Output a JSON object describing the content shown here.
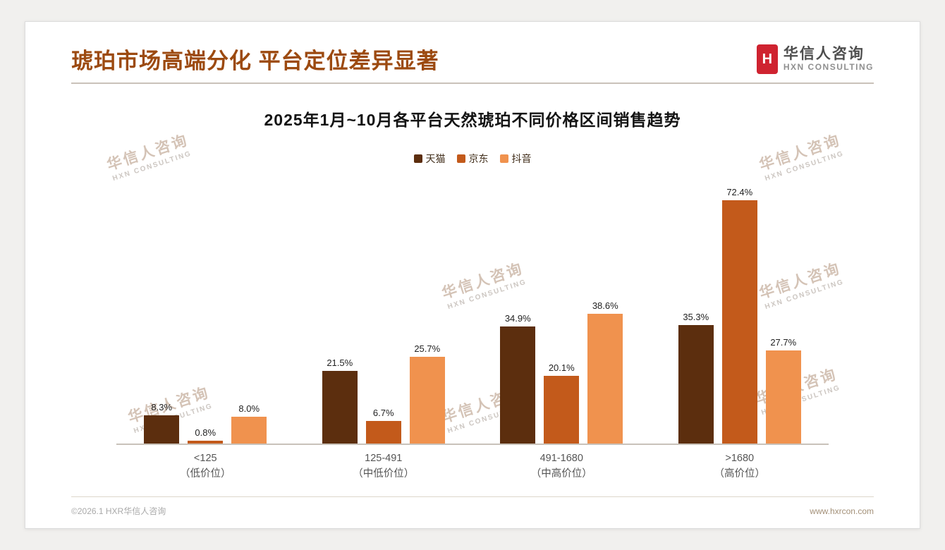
{
  "page": {
    "title": "琥珀市场高端分化 平台定位差异显著",
    "footer_left": "©2026.1 HXR华信人咨询",
    "footer_right": "www.hxrcon.com"
  },
  "logo": {
    "mark_letter": "H",
    "name_cn": "华信人咨询",
    "name_en": "HXN CONSULTING",
    "mark_color": "#cf2330"
  },
  "watermark": {
    "line1": "华信人咨询",
    "line2": "HXN CONSULTING"
  },
  "chart_data": {
    "type": "bar",
    "title": "2025年1月~10月各平台天然琥珀不同价格区间销售趋势",
    "categories": [
      "<125",
      "125-491",
      "491-1680",
      ">1680"
    ],
    "category_sublabels": [
      "（低价位）",
      "（中低价位）",
      "（中高价位）",
      "（高价位）"
    ],
    "series": [
      {
        "key": "tmall",
        "name": "天猫",
        "color": "#5c2e0e",
        "values": [
          8.3,
          21.5,
          34.9,
          35.3
        ]
      },
      {
        "key": "jd",
        "name": "京东",
        "color": "#c35a1b",
        "values": [
          0.8,
          6.7,
          20.1,
          72.4
        ]
      },
      {
        "key": "douyin",
        "name": "抖音",
        "color": "#f0924e",
        "values": [
          8.0,
          25.7,
          38.6,
          27.7
        ]
      }
    ],
    "value_suffix": "%",
    "ylim": [
      0,
      80
    ],
    "legend_position": "top",
    "grid": false,
    "data_labels": true
  }
}
